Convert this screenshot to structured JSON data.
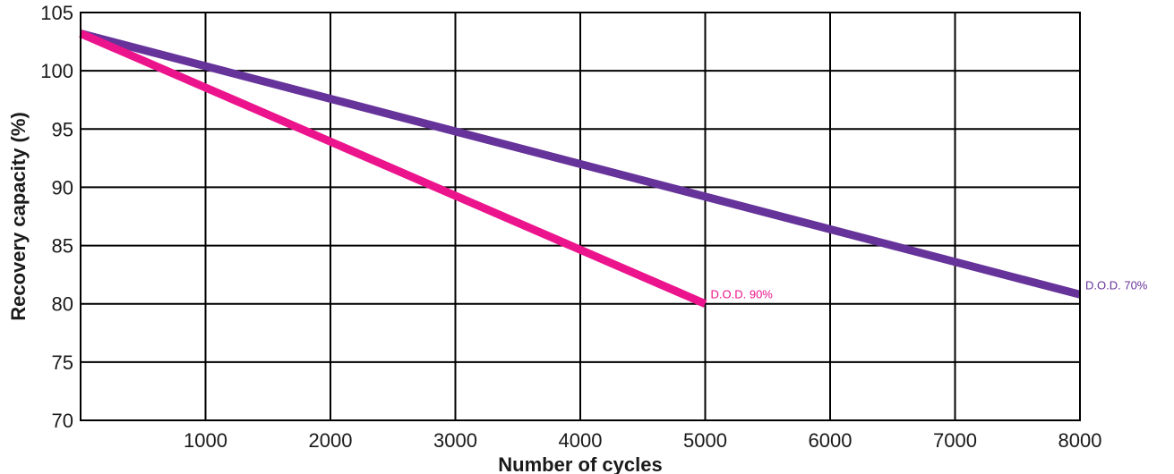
{
  "chart_data": {
    "type": "line",
    "xlabel": "Number of cycles",
    "ylabel": "Recovery capacity (%)",
    "xlim": [
      0,
      8000
    ],
    "ylim": [
      70,
      105
    ],
    "x_ticks": [
      1000,
      2000,
      3000,
      4000,
      5000,
      6000,
      7000,
      8000
    ],
    "y_ticks": [
      70,
      75,
      80,
      85,
      90,
      95,
      100,
      105
    ],
    "grid": true,
    "legend": "none",
    "series": [
      {
        "name": "D.O.D. 70%",
        "color": "#66339a",
        "x": [
          0,
          8000
        ],
        "y": [
          103.2,
          80.8
        ]
      },
      {
        "name": "D.O.D. 90%",
        "color": "#ec148c",
        "x": [
          0,
          5000
        ],
        "y": [
          103.2,
          80.0
        ]
      }
    ]
  }
}
